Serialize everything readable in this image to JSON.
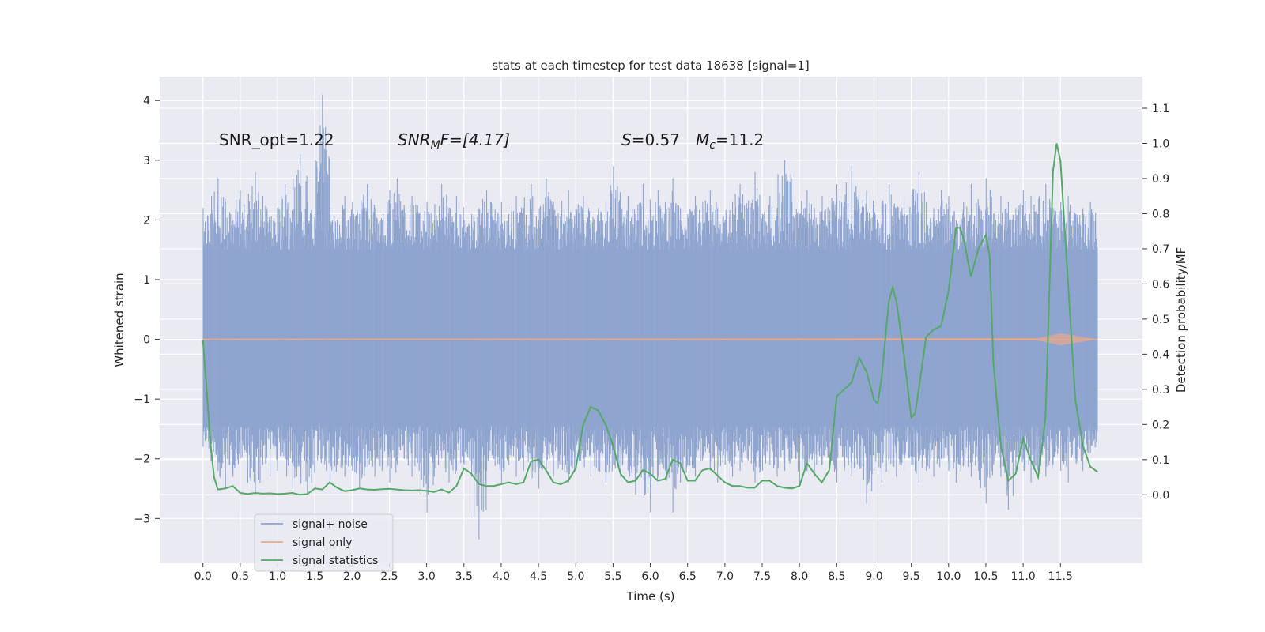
{
  "chart_data": {
    "type": "line",
    "title": "stats at each timestep for test data 18638 [signal=1]",
    "xlabel": "Time (s)",
    "ylabel_left": "Whitened strain",
    "ylabel_right": "Detection probability/MF",
    "grid": true,
    "xlim": [
      -0.58,
      12.6
    ],
    "ylim_left": [
      -3.75,
      4.4
    ],
    "ylim_right": [
      -0.195,
      1.19
    ],
    "x_ticks": [
      "0.0",
      "0.5",
      "1.0",
      "1.5",
      "2.0",
      "2.5",
      "3.0",
      "3.5",
      "4.0",
      "4.5",
      "5.0",
      "5.5",
      "6.0",
      "6.5",
      "7.0",
      "7.5",
      "8.0",
      "8.5",
      "9.0",
      "9.5",
      "10.0",
      "10.5",
      "11.0",
      "11.5"
    ],
    "x_tick_values": [
      0,
      0.5,
      1,
      1.5,
      2,
      2.5,
      3,
      3.5,
      4,
      4.5,
      5,
      5.5,
      6,
      6.5,
      7,
      7.5,
      8,
      8.5,
      9,
      9.5,
      10,
      10.5,
      11,
      11.5
    ],
    "y_left_ticks": [
      "4",
      "3",
      "2",
      "1",
      "0",
      "−1",
      "−2",
      "−3"
    ],
    "y_left_tick_values": [
      4,
      3,
      2,
      1,
      0,
      -1,
      -2,
      -3
    ],
    "y_right_ticks": [
      "1.1",
      "1.0",
      "0.9",
      "0.8",
      "0.7",
      "0.6",
      "0.5",
      "0.4",
      "0.3",
      "0.2",
      "0.1",
      "0.0"
    ],
    "y_right_tick_values": [
      1.1,
      1.0,
      0.9,
      0.8,
      0.7,
      0.6,
      0.5,
      0.4,
      0.3,
      0.2,
      0.1,
      0.0
    ],
    "noise_band": {
      "t_start": 0.0,
      "t_end": 12.0,
      "core": [
        -1.45,
        1.5
      ],
      "extremes_min": -3.35,
      "extremes_max": 4.1
    },
    "legend": {
      "location": "lower-left",
      "entries": [
        "signal+ noise",
        "signal only",
        "signal statistics"
      ]
    },
    "annotations": {
      "snr_opt": "SNR_opt=1.22",
      "snr_mf_sym": "SNR",
      "snr_mf_sub": "M",
      "snr_mf_rest": "F=[4.17]",
      "s_sym": "S",
      "s_val": "=0.57",
      "mc_sym": "M",
      "mc_sub": "c",
      "mc_val": "=11.2"
    },
    "series": [
      {
        "name": "signal+ noise",
        "color": "#8fa5cf",
        "x": [
          0.0,
          0.1,
          0.2,
          0.3,
          0.4,
          0.5,
          0.6,
          0.7,
          0.8,
          0.9,
          1.0,
          1.1,
          1.2,
          1.3,
          1.4,
          1.5,
          1.6,
          1.7,
          1.8,
          1.9,
          2.0,
          2.1,
          2.2,
          2.3,
          2.4,
          2.5,
          2.6,
          2.7,
          2.8,
          2.9,
          3.0,
          3.1,
          3.2,
          3.3,
          3.4,
          3.5,
          3.6,
          3.7,
          3.8,
          3.9,
          4.0,
          4.1,
          4.2,
          4.3,
          4.4,
          4.5,
          4.6,
          4.7,
          4.8,
          4.9,
          5.0,
          5.1,
          5.2,
          5.3,
          5.4,
          5.5,
          5.6,
          5.7,
          5.8,
          5.9,
          6.0,
          6.1,
          6.2,
          6.3,
          6.4,
          6.5,
          6.6,
          6.7,
          6.8,
          6.9,
          7.0,
          7.1,
          7.2,
          7.3,
          7.4,
          7.5,
          7.6,
          7.7,
          7.8,
          7.9,
          8.0,
          8.1,
          8.2,
          8.3,
          8.4,
          8.5,
          8.6,
          8.7,
          8.8,
          8.9,
          9.0,
          9.1,
          9.2,
          9.3,
          9.4,
          9.5,
          9.6,
          9.7,
          9.8,
          9.9,
          10.0,
          10.1,
          10.2,
          10.3,
          10.4,
          10.5,
          10.6,
          10.7,
          10.8,
          10.9,
          11.0,
          11.1,
          11.2,
          11.3,
          11.4,
          11.5,
          11.6,
          11.7,
          11.8,
          11.9,
          12.0
        ],
        "hi": [
          2.2,
          2.1,
          2.7,
          2.3,
          2.0,
          2.5,
          2.1,
          2.8,
          2.4,
          2.0,
          2.2,
          2.6,
          2.0,
          3.1,
          2.3,
          2.1,
          4.1,
          2.2,
          2.0,
          2.4,
          2.3,
          2.1,
          2.6,
          2.2,
          2.0,
          2.5,
          2.7,
          2.2,
          2.4,
          2.1,
          2.3,
          2.0,
          2.6,
          2.2,
          2.4,
          2.0,
          2.1,
          2.2,
          2.5,
          2.0,
          2.3,
          2.1,
          2.4,
          2.2,
          2.6,
          2.0,
          2.7,
          2.3,
          2.1,
          2.5,
          2.2,
          2.4,
          2.0,
          2.2,
          2.3,
          2.9,
          2.2,
          2.4,
          2.1,
          2.6,
          2.0,
          2.5,
          2.3,
          2.7,
          2.2,
          2.1,
          2.4,
          2.3,
          2.5,
          2.2,
          2.0,
          2.3,
          2.6,
          2.2,
          2.8,
          2.1,
          2.4,
          2.2,
          3.0,
          2.3,
          2.1,
          2.5,
          2.2,
          2.4,
          2.0,
          2.6,
          2.3,
          2.9,
          2.2,
          2.5,
          2.0,
          2.3,
          2.6,
          2.2,
          2.4,
          2.1,
          2.8,
          2.3,
          2.2,
          2.5,
          2.4,
          2.0,
          2.3,
          2.6,
          2.2,
          2.7,
          2.1,
          2.4,
          2.3,
          2.2,
          2.5,
          2.4,
          2.1,
          2.6,
          2.2,
          2.3,
          2.4,
          2.1,
          2.2,
          2.3,
          2.0
        ],
        "lo": [
          -1.8,
          -1.9,
          -2.2,
          -2.5,
          -2.3,
          -2.0,
          -2.4,
          -2.6,
          -2.1,
          -2.3,
          -2.2,
          -2.0,
          -2.5,
          -2.3,
          -2.6,
          -2.2,
          -2.0,
          -2.4,
          -2.1,
          -2.3,
          -2.2,
          -2.5,
          -2.0,
          -2.3,
          -2.2,
          -2.4,
          -2.1,
          -2.0,
          -2.3,
          -2.2,
          -2.9,
          -2.3,
          -2.0,
          -2.4,
          -2.2,
          -2.1,
          -2.3,
          -3.35,
          -2.2,
          -2.0,
          -2.4,
          -2.1,
          -2.3,
          -2.2,
          -2.0,
          -2.5,
          -2.2,
          -2.3,
          -2.1,
          -2.4,
          -2.2,
          -2.0,
          -2.3,
          -2.2,
          -2.4,
          -2.1,
          -2.3,
          -2.2,
          -2.6,
          -2.0,
          -2.9,
          -2.3,
          -2.2,
          -2.9,
          -2.4,
          -2.1,
          -2.3,
          -2.0,
          -2.2,
          -2.4,
          -2.1,
          -2.3,
          -2.2,
          -2.0,
          -2.4,
          -2.2,
          -2.1,
          -2.3,
          -2.2,
          -2.0,
          -2.4,
          -2.2,
          -2.3,
          -2.1,
          -2.0,
          -2.4,
          -2.2,
          -2.3,
          -2.1,
          -2.75,
          -2.2,
          -2.4,
          -2.0,
          -2.3,
          -2.2,
          -2.1,
          -2.4,
          -2.2,
          -2.3,
          -2.0,
          -2.2,
          -2.4,
          -2.1,
          -2.3,
          -2.2,
          -2.75,
          -2.1,
          -2.3,
          -2.85,
          -2.2,
          -2.0,
          -2.4,
          -2.2,
          -2.3,
          -2.1,
          -2.2,
          -2.4,
          -2.0,
          -2.2,
          -1.9,
          -1.4
        ]
      },
      {
        "name": "signal only",
        "color": "#dd8452",
        "x": [
          0.0,
          11.2,
          11.5,
          11.8,
          12.0
        ],
        "amplitude": [
          0.01,
          0.02,
          0.1,
          0.04,
          0.0
        ]
      },
      {
        "name": "signal statistics",
        "color": "#55a868",
        "x": [
          0.0,
          0.05,
          0.1,
          0.15,
          0.2,
          0.3,
          0.4,
          0.5,
          0.6,
          0.7,
          0.8,
          0.9,
          1.0,
          1.1,
          1.2,
          1.3,
          1.4,
          1.5,
          1.6,
          1.7,
          1.8,
          1.9,
          2.0,
          2.1,
          2.2,
          2.3,
          2.4,
          2.5,
          2.6,
          2.7,
          2.8,
          2.9,
          3.0,
          3.1,
          3.2,
          3.3,
          3.4,
          3.5,
          3.6,
          3.7,
          3.8,
          3.9,
          4.0,
          4.1,
          4.2,
          4.3,
          4.4,
          4.5,
          4.6,
          4.7,
          4.8,
          4.9,
          5.0,
          5.1,
          5.2,
          5.3,
          5.4,
          5.5,
          5.6,
          5.7,
          5.8,
          5.9,
          6.0,
          6.1,
          6.2,
          6.3,
          6.4,
          6.5,
          6.6,
          6.7,
          6.8,
          6.9,
          7.0,
          7.1,
          7.2,
          7.3,
          7.4,
          7.5,
          7.6,
          7.7,
          7.8,
          7.9,
          8.0,
          8.1,
          8.2,
          8.3,
          8.4,
          8.5,
          8.6,
          8.7,
          8.8,
          8.9,
          9.0,
          9.05,
          9.1,
          9.2,
          9.25,
          9.3,
          9.4,
          9.5,
          9.55,
          9.6,
          9.7,
          9.8,
          9.9,
          10.0,
          10.1,
          10.15,
          10.2,
          10.3,
          10.4,
          10.5,
          10.55,
          10.6,
          10.7,
          10.8,
          10.9,
          11.0,
          11.1,
          11.2,
          11.3,
          11.4,
          11.45,
          11.5,
          11.6,
          11.7,
          11.8,
          11.9,
          12.0
        ],
        "y": [
          0.44,
          0.3,
          0.15,
          0.05,
          0.015,
          0.018,
          0.025,
          0.005,
          0.002,
          0.005,
          0.003,
          0.004,
          0.002,
          0.003,
          0.005,
          0.0,
          0.002,
          0.018,
          0.015,
          0.035,
          0.02,
          0.01,
          0.013,
          0.018,
          0.015,
          0.014,
          0.016,
          0.017,
          0.015,
          0.013,
          0.012,
          0.013,
          0.011,
          0.008,
          0.015,
          0.006,
          0.025,
          0.075,
          0.06,
          0.03,
          0.025,
          0.025,
          0.03,
          0.035,
          0.03,
          0.035,
          0.095,
          0.1,
          0.07,
          0.035,
          0.03,
          0.04,
          0.075,
          0.2,
          0.25,
          0.24,
          0.2,
          0.14,
          0.06,
          0.035,
          0.04,
          0.07,
          0.06,
          0.04,
          0.045,
          0.1,
          0.09,
          0.04,
          0.04,
          0.07,
          0.075,
          0.055,
          0.035,
          0.025,
          0.025,
          0.02,
          0.02,
          0.04,
          0.04,
          0.025,
          0.02,
          0.018,
          0.025,
          0.09,
          0.06,
          0.035,
          0.07,
          0.28,
          0.3,
          0.32,
          0.39,
          0.35,
          0.27,
          0.26,
          0.33,
          0.55,
          0.59,
          0.55,
          0.4,
          0.22,
          0.23,
          0.3,
          0.45,
          0.47,
          0.48,
          0.58,
          0.76,
          0.76,
          0.73,
          0.62,
          0.7,
          0.74,
          0.68,
          0.38,
          0.14,
          0.04,
          0.06,
          0.16,
          0.1,
          0.05,
          0.22,
          0.92,
          1.0,
          0.95,
          0.61,
          0.27,
          0.14,
          0.08,
          0.065
        ]
      }
    ]
  }
}
